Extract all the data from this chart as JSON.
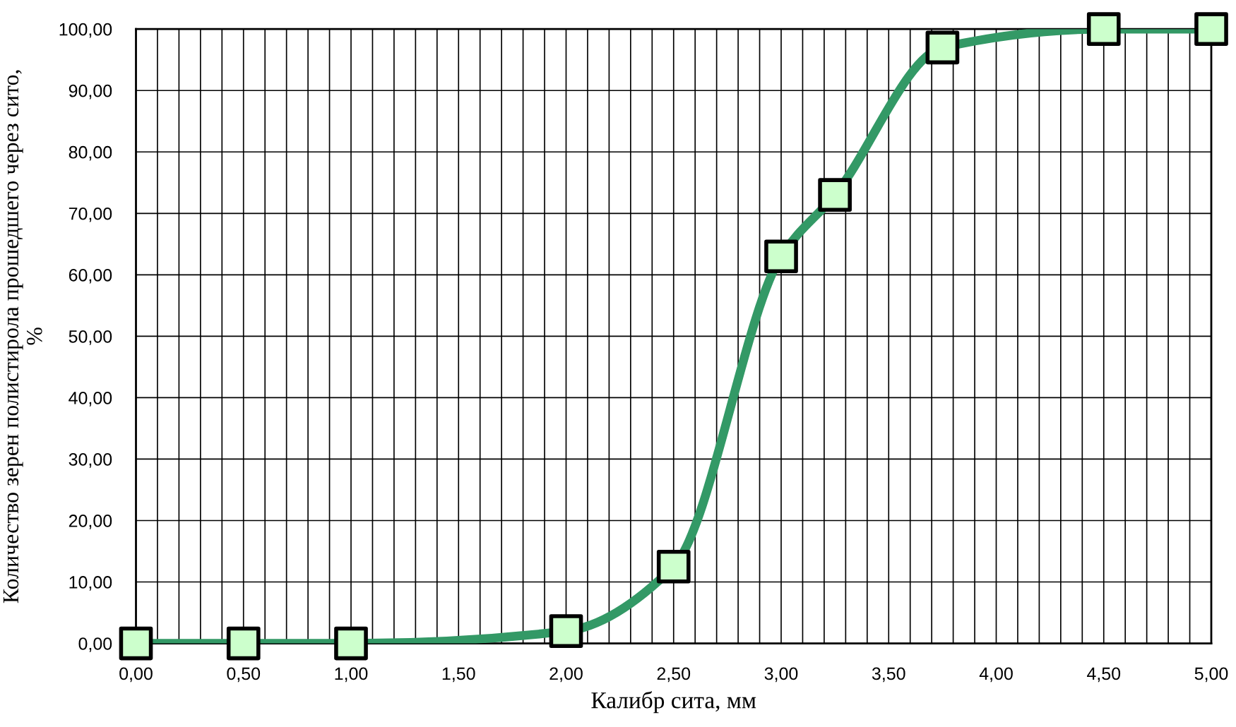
{
  "chart_data": {
    "type": "line",
    "xlabel": "Калибр сита, мм",
    "ylabel": "Количество зерен полистирола прошедшего через сито,\n%",
    "x": [
      0,
      0.5,
      1,
      2,
      2.5,
      3,
      3.25,
      3.75,
      4.5,
      5
    ],
    "series": [
      {
        "color": "#339966",
        "values": [
          0,
          0,
          0,
          2,
          12.5,
          63,
          73,
          97,
          100,
          100
        ]
      }
    ],
    "marker": "square",
    "line_style": "solid",
    "grid": true,
    "legend": false,
    "xlim": [
      0,
      5
    ],
    "ylim": [
      0,
      100
    ],
    "xticks": [
      {
        "value": 0,
        "label": "0,00"
      },
      {
        "value": 0.1,
        "label": null
      },
      {
        "value": 0.2,
        "label": null
      },
      {
        "value": 0.3,
        "label": null
      },
      {
        "value": 0.4,
        "label": null
      },
      {
        "value": 0.5,
        "label": "0,50"
      },
      {
        "value": 0.6,
        "label": null
      },
      {
        "value": 0.7,
        "label": null
      },
      {
        "value": 0.8,
        "label": null
      },
      {
        "value": 0.9,
        "label": null
      },
      {
        "value": 1,
        "label": "1,00"
      },
      {
        "value": 1.1,
        "label": null
      },
      {
        "value": 1.2,
        "label": null
      },
      {
        "value": 1.3,
        "label": null
      },
      {
        "value": 1.4,
        "label": null
      },
      {
        "value": 1.5,
        "label": "1,50"
      },
      {
        "value": 1.6,
        "label": null
      },
      {
        "value": 1.7,
        "label": null
      },
      {
        "value": 1.8,
        "label": null
      },
      {
        "value": 1.9,
        "label": null
      },
      {
        "value": 2,
        "label": "2,00"
      },
      {
        "value": 2.1,
        "label": null
      },
      {
        "value": 2.2,
        "label": null
      },
      {
        "value": 2.3,
        "label": null
      },
      {
        "value": 2.4,
        "label": null
      },
      {
        "value": 2.5,
        "label": "2,50"
      },
      {
        "value": 2.6,
        "label": null
      },
      {
        "value": 2.7,
        "label": null
      },
      {
        "value": 2.8,
        "label": null
      },
      {
        "value": 2.9,
        "label": null
      },
      {
        "value": 3,
        "label": "3,00"
      },
      {
        "value": 3.1,
        "label": null
      },
      {
        "value": 3.2,
        "label": null
      },
      {
        "value": 3.3,
        "label": null
      },
      {
        "value": 3.4,
        "label": null
      },
      {
        "value": 3.5,
        "label": "3,50"
      },
      {
        "value": 3.6,
        "label": null
      },
      {
        "value": 3.7,
        "label": null
      },
      {
        "value": 3.8,
        "label": null
      },
      {
        "value": 3.9,
        "label": null
      },
      {
        "value": 4,
        "label": "4,00"
      },
      {
        "value": 4.1,
        "label": null
      },
      {
        "value": 4.2,
        "label": null
      },
      {
        "value": 4.3,
        "label": null
      },
      {
        "value": 4.4,
        "label": null
      },
      {
        "value": 4.5,
        "label": "4,50"
      },
      {
        "value": 4.6,
        "label": null
      },
      {
        "value": 4.7,
        "label": null
      },
      {
        "value": 4.8,
        "label": null
      },
      {
        "value": 4.9,
        "label": null
      },
      {
        "value": 5,
        "label": "5,00"
      }
    ],
    "yticks": [
      {
        "value": 0,
        "label": "0,00"
      },
      {
        "value": 10,
        "label": "10,00"
      },
      {
        "value": 20,
        "label": "20,00"
      },
      {
        "value": 30,
        "label": "30,00"
      },
      {
        "value": 40,
        "label": "40,00"
      },
      {
        "value": 50,
        "label": "50,00"
      },
      {
        "value": 60,
        "label": "60,00"
      },
      {
        "value": 70,
        "label": "70,00"
      },
      {
        "value": 80,
        "label": "80,00"
      },
      {
        "value": 90,
        "label": "90,00"
      },
      {
        "value": 100,
        "label": "100,00"
      }
    ]
  }
}
